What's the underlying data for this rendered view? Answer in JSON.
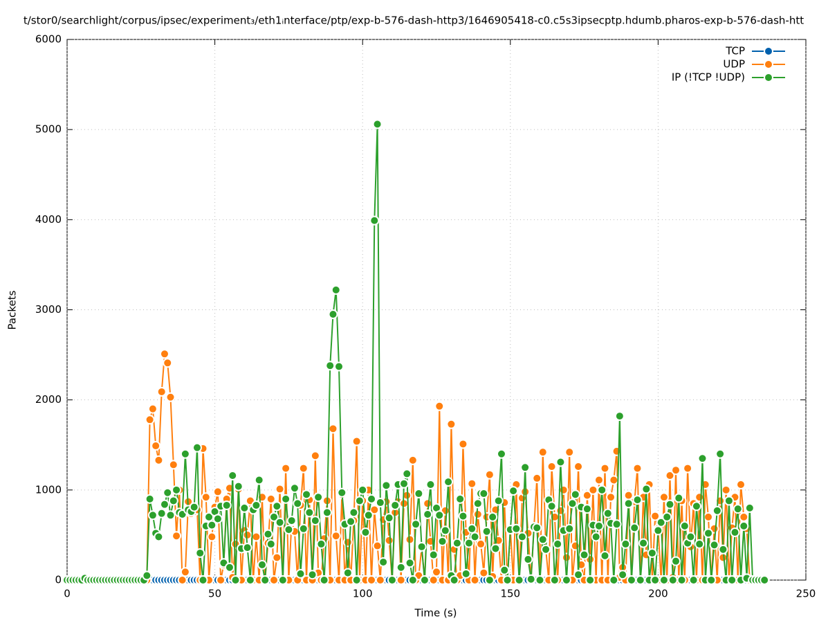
{
  "chart_data": {
    "type": "line",
    "title": "t/stor0/searchlight/corpus/ipsec/experiment₃/eth1ᵢnterface/ptp/exp-b-576-dash-http3/1646905418-c0.c5s3ipsecptp.hdumb.pharos-exp-b-576-dash-htt",
    "x_label": "Time (s)",
    "y_label": "Packets",
    "xlim": [
      0,
      250
    ],
    "xticks": [
      0,
      50,
      100,
      150,
      200,
      250
    ],
    "ylim": [
      0,
      6000
    ],
    "yticks": [
      0,
      1000,
      2000,
      3000,
      4000,
      5000,
      6000
    ],
    "grid": true,
    "legend": "top-right",
    "x": [
      0,
      1,
      2,
      3,
      4,
      5,
      6,
      7,
      8,
      9,
      10,
      11,
      12,
      13,
      14,
      15,
      16,
      17,
      18,
      19,
      20,
      21,
      22,
      23,
      24,
      25,
      26,
      27,
      28,
      29,
      30,
      31,
      32,
      33,
      34,
      35,
      36,
      37,
      38,
      39,
      40,
      41,
      42,
      43,
      44,
      45,
      46,
      47,
      48,
      49,
      50,
      51,
      52,
      53,
      54,
      55,
      56,
      57,
      58,
      59,
      60,
      61,
      62,
      63,
      64,
      65,
      66,
      67,
      68,
      69,
      70,
      71,
      72,
      73,
      74,
      75,
      76,
      77,
      78,
      79,
      80,
      81,
      82,
      83,
      84,
      85,
      86,
      87,
      88,
      89,
      90,
      91,
      92,
      93,
      94,
      95,
      96,
      97,
      98,
      99,
      100,
      101,
      102,
      103,
      104,
      105,
      106,
      107,
      108,
      109,
      110,
      111,
      112,
      113,
      114,
      115,
      116,
      117,
      118,
      119,
      120,
      121,
      122,
      123,
      124,
      125,
      126,
      127,
      128,
      129,
      130,
      131,
      132,
      133,
      134,
      135,
      136,
      137,
      138,
      139,
      140,
      141,
      142,
      143,
      144,
      145,
      146,
      147,
      148,
      149,
      150,
      151,
      152,
      153,
      154,
      155,
      156,
      157,
      158,
      159,
      160,
      161,
      162,
      163,
      164,
      165,
      166,
      167,
      168,
      169,
      170,
      171,
      172,
      173,
      174,
      175,
      176,
      177,
      178,
      179,
      180,
      181,
      182,
      183,
      184,
      185,
      186,
      187,
      188,
      189,
      190,
      191,
      192,
      193,
      194,
      195,
      196,
      197,
      198,
      199,
      200,
      201,
      202,
      203,
      204,
      205,
      206,
      207,
      208,
      209,
      210,
      211,
      212,
      213,
      214,
      215,
      216,
      217,
      218,
      219,
      220,
      221,
      222,
      223,
      224,
      225,
      226,
      227,
      228,
      229,
      230,
      231,
      232,
      233,
      234,
      235,
      236
    ],
    "series": [
      {
        "name": "TCP",
        "color": "#0060ad",
        "values": [
          0,
          0,
          0,
          0,
          0,
          0,
          0,
          0,
          0,
          0,
          0,
          0,
          0,
          0,
          0,
          0,
          0,
          0,
          0,
          0,
          0,
          0,
          0,
          0,
          0,
          0,
          0,
          0,
          0,
          0,
          0,
          0,
          0,
          0,
          0,
          0,
          0,
          0,
          0,
          0,
          0,
          0,
          0,
          0,
          0,
          0,
          0,
          0,
          0,
          0,
          0,
          0,
          0,
          0,
          0,
          0,
          0,
          0,
          0,
          0,
          0,
          0,
          0,
          0,
          0,
          0,
          0,
          0,
          0,
          0,
          0,
          0,
          0,
          0,
          0,
          0,
          0,
          0,
          0,
          0,
          0,
          0,
          0,
          0,
          0,
          0,
          0,
          0,
          0,
          0,
          0,
          0,
          0,
          0,
          0,
          0,
          0,
          0,
          0,
          0,
          0,
          0,
          0,
          0,
          0,
          0,
          0,
          0,
          0,
          0,
          0,
          0,
          0,
          0,
          0,
          0,
          0,
          0,
          0,
          0,
          0,
          0,
          0,
          0,
          0,
          0,
          0,
          0,
          0,
          0,
          0,
          0,
          0,
          0,
          0,
          0,
          0,
          0,
          0,
          0,
          0,
          0,
          0,
          0,
          0,
          0,
          0,
          0,
          0,
          0,
          0,
          0,
          0,
          0,
          0,
          0,
          0,
          0,
          0,
          0,
          0,
          0,
          0,
          0,
          0,
          0,
          0,
          0,
          0,
          0,
          0,
          0,
          0,
          0,
          0,
          0,
          0,
          0,
          0,
          0,
          0,
          0,
          0,
          0,
          0,
          0,
          0,
          0,
          0,
          0,
          0,
          0,
          0,
          0,
          0,
          0,
          0,
          0,
          0,
          0,
          0,
          0,
          0,
          0,
          0,
          0,
          0,
          0,
          0,
          0,
          0,
          0,
          0,
          0,
          0,
          0,
          0,
          0,
          0,
          0,
          0,
          0,
          0,
          0,
          0,
          0,
          0,
          0,
          0,
          0,
          0,
          0,
          0,
          0,
          0,
          0,
          0
        ]
      },
      {
        "name": "UDP",
        "color": "#ff7f0e",
        "values": [
          0,
          0,
          0,
          0,
          0,
          0,
          0,
          0,
          0,
          0,
          0,
          0,
          0,
          0,
          0,
          0,
          0,
          0,
          0,
          0,
          0,
          0,
          0,
          0,
          0,
          0,
          0,
          0,
          1780,
          1900,
          1490,
          1330,
          2090,
          2510,
          2410,
          2030,
          1280,
          490,
          1000,
          0,
          90,
          870,
          740,
          760,
          780,
          0,
          1460,
          920,
          0,
          480,
          810,
          980,
          0,
          170,
          900,
          1020,
          30,
          400,
          1010,
          0,
          550,
          500,
          880,
          0,
          480,
          0,
          920,
          0,
          410,
          900,
          0,
          250,
          1010,
          0,
          1240,
          0,
          650,
          540,
          0,
          830,
          1240,
          0,
          890,
          0,
          1380,
          80,
          0,
          460,
          880,
          0,
          1680,
          490,
          0,
          950,
          0,
          420,
          0,
          660,
          1540,
          0,
          880,
          0,
          1000,
          0,
          780,
          380,
          0,
          670,
          870,
          440,
          0,
          750,
          870,
          0,
          850,
          940,
          450,
          1330,
          0,
          50,
          360,
          0,
          850,
          430,
          0,
          90,
          1930,
          0,
          770,
          0,
          1730,
          340,
          0,
          50,
          1510,
          530,
          0,
          1070,
          0,
          730,
          400,
          80,
          700,
          1170,
          40,
          780,
          440,
          0,
          860,
          0,
          560,
          0,
          1060,
          0,
          910,
          980,
          520,
          0,
          590,
          1130,
          0,
          1420,
          340,
          0,
          1260,
          700,
          0,
          770,
          1000,
          250,
          1420,
          0,
          380,
          1260,
          170,
          0,
          940,
          230,
          1000,
          0,
          1110,
          0,
          1240,
          0,
          920,
          1110,
          1430,
          30,
          140,
          0,
          940,
          0,
          870,
          1240,
          0,
          920,
          280,
          1060,
          0,
          710,
          570,
          0,
          920,
          0,
          1160,
          30,
          1220,
          0,
          880,
          0,
          1240,
          370,
          850,
          0,
          920,
          0,
          1060,
          700,
          0,
          570,
          0,
          880,
          250,
          1000,
          0,
          580,
          920,
          0,
          1060,
          700,
          570,
          0,
          0,
          0,
          0,
          0,
          0
        ]
      },
      {
        "name": "IP (!TCP  !UDP)",
        "color": "#2ca02c",
        "values": [
          0,
          0,
          0,
          0,
          0,
          0,
          20,
          0,
          0,
          0,
          0,
          0,
          0,
          0,
          0,
          0,
          0,
          0,
          0,
          0,
          0,
          0,
          0,
          0,
          0,
          0,
          0,
          50,
          900,
          720,
          520,
          480,
          740,
          840,
          970,
          720,
          880,
          1000,
          750,
          730,
          1400,
          780,
          760,
          810,
          1470,
          300,
          0,
          600,
          700,
          610,
          760,
          680,
          820,
          190,
          830,
          140,
          1160,
          0,
          1040,
          350,
          800,
          360,
          0,
          780,
          830,
          1110,
          170,
          0,
          510,
          400,
          700,
          820,
          640,
          0,
          900,
          560,
          660,
          1020,
          850,
          70,
          570,
          950,
          750,
          60,
          660,
          920,
          400,
          0,
          750,
          2380,
          2950,
          3220,
          2370,
          970,
          620,
          80,
          650,
          750,
          0,
          880,
          1000,
          530,
          720,
          900,
          3990,
          5060,
          860,
          200,
          1050,
          690,
          0,
          830,
          1060,
          140,
          1070,
          1180,
          190,
          0,
          620,
          960,
          370,
          0,
          730,
          1060,
          280,
          800,
          720,
          430,
          550,
          1090,
          50,
          0,
          410,
          900,
          710,
          70,
          410,
          570,
          480,
          850,
          960,
          960,
          540,
          0,
          700,
          350,
          880,
          1400,
          110,
          0,
          560,
          990,
          570,
          0,
          480,
          1250,
          230,
          10,
          590,
          580,
          0,
          450,
          340,
          890,
          820,
          0,
          400,
          1310,
          550,
          0,
          570,
          850,
          950,
          60,
          810,
          280,
          790,
          0,
          610,
          480,
          600,
          1000,
          270,
          740,
          630,
          0,
          620,
          1820,
          60,
          400,
          850,
          0,
          580,
          890,
          0,
          410,
          1010,
          0,
          300,
          0,
          550,
          640,
          0,
          700,
          840,
          0,
          210,
          910,
          0,
          600,
          410,
          480,
          0,
          820,
          400,
          1350,
          0,
          520,
          0,
          390,
          770,
          1400,
          340,
          0,
          880,
          0,
          530,
          790,
          0,
          600,
          20,
          800,
          0,
          0,
          0,
          0,
          0
        ]
      }
    ]
  }
}
